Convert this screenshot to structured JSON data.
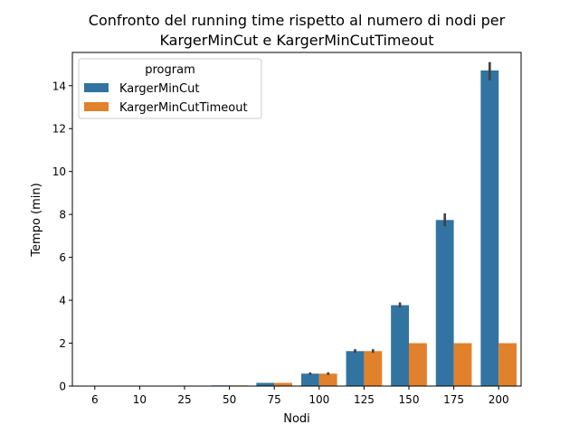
{
  "chart_data": {
    "type": "bar",
    "title": "Confronto del running time rispetto al numero di nodi per\nKargerMinCut e KargerMinCutTimeout",
    "xlabel": "Nodi",
    "ylabel": "Tempo (min)",
    "categories": [
      "6",
      "10",
      "25",
      "50",
      "75",
      "100",
      "125",
      "150",
      "175",
      "200"
    ],
    "ylim": [
      0,
      15.55
    ],
    "yticks": [
      0,
      2,
      4,
      6,
      8,
      10,
      12,
      14
    ],
    "grid": false,
    "legend": {
      "title": "program",
      "position": "top-left"
    },
    "series": [
      {
        "name": "KargerMinCut",
        "color": "#3274a1",
        "values": [
          0.0,
          0.0,
          0.0,
          0.03,
          0.15,
          0.58,
          1.63,
          3.77,
          7.74,
          14.71
        ],
        "ci": [
          null,
          null,
          null,
          null,
          null,
          [
            0.52,
            0.64
          ],
          [
            1.55,
            1.72
          ],
          [
            3.66,
            3.9
          ],
          [
            7.45,
            8.05
          ],
          [
            14.25,
            15.1
          ]
        ]
      },
      {
        "name": "KargerMinCutTimeout",
        "color": "#e1812c",
        "values": [
          0.0,
          0.0,
          0.0,
          0.03,
          0.15,
          0.58,
          1.63,
          2.0,
          2.0,
          2.0
        ],
        "ci": [
          null,
          null,
          null,
          null,
          null,
          [
            0.52,
            0.64
          ],
          [
            1.55,
            1.72
          ],
          null,
          null,
          null
        ]
      }
    ]
  }
}
